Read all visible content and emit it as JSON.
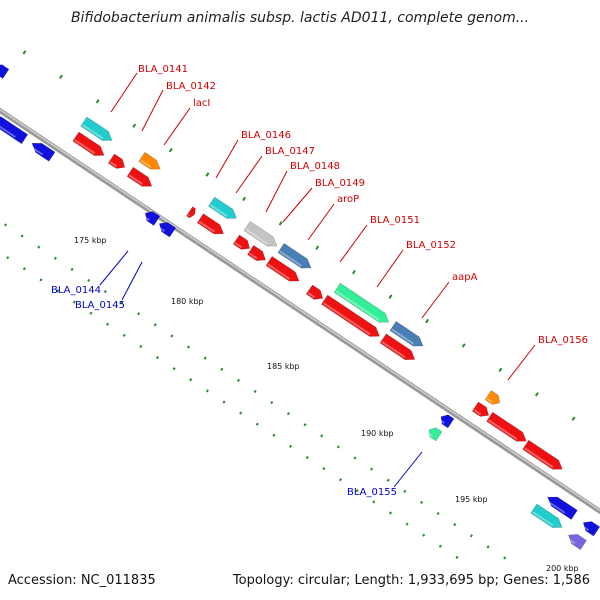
{
  "header": {
    "title": "Bifidobacterium animalis subsp. lactis AD011, complete genom..."
  },
  "footer": {
    "accession": "Accession: NC_011835",
    "stats": "Topology: circular; Length: 1,933,695 bp; Genes: 1,586"
  },
  "colors": {
    "backbone": "#8a8a8a",
    "tick": "#2a8a2a",
    "forward_label": "#d00000",
    "reverse_label": "#0000c8",
    "red": "#ee1111",
    "cyan": "#22cccc",
    "orange": "#ff8800",
    "gray": "#c4c4c4",
    "steelblue": "#4a7fb5",
    "mint": "#33ee99",
    "blue": "#1111dd",
    "purple": "#7766dd"
  },
  "scale_labels": [
    "175 kbp",
    "180 kbp",
    "185 kbp",
    "190 kbp",
    "195 kbp",
    "200 kbp"
  ],
  "gene_labels": {
    "forward": [
      "BLA_0141",
      "BLA_0142",
      "lacI",
      "BLA_0146",
      "BLA_0147",
      "BLA_0148",
      "BLA_0149",
      "aroP",
      "BLA_0151",
      "BLA_0152",
      "aapA",
      "BLA_0156"
    ],
    "reverse": [
      "BLA_0144",
      "BLA_0145",
      "BLA_0155"
    ]
  }
}
